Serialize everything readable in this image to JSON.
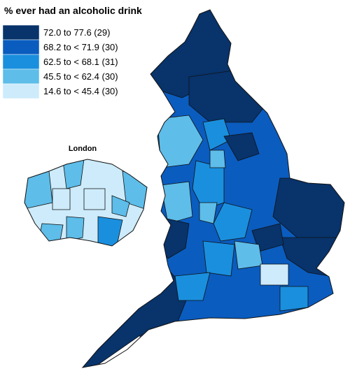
{
  "title": "% ever had an alcoholic drink",
  "legend": [
    {
      "label": "72.0 to 77.6 (29)",
      "color": "#08336b"
    },
    {
      "label": "68.2 to < 71.9 (30)",
      "color": "#0a5cbf"
    },
    {
      "label": "62.5 to < 68.1 (31)",
      "color": "#1a8fde"
    },
    {
      "label": "45.5 to < 62.4 (30)",
      "color": "#5ebde9"
    },
    {
      "label": "14.6 to < 45.4 (30)",
      "color": "#cdebfb"
    }
  ],
  "inset_label": "London"
}
